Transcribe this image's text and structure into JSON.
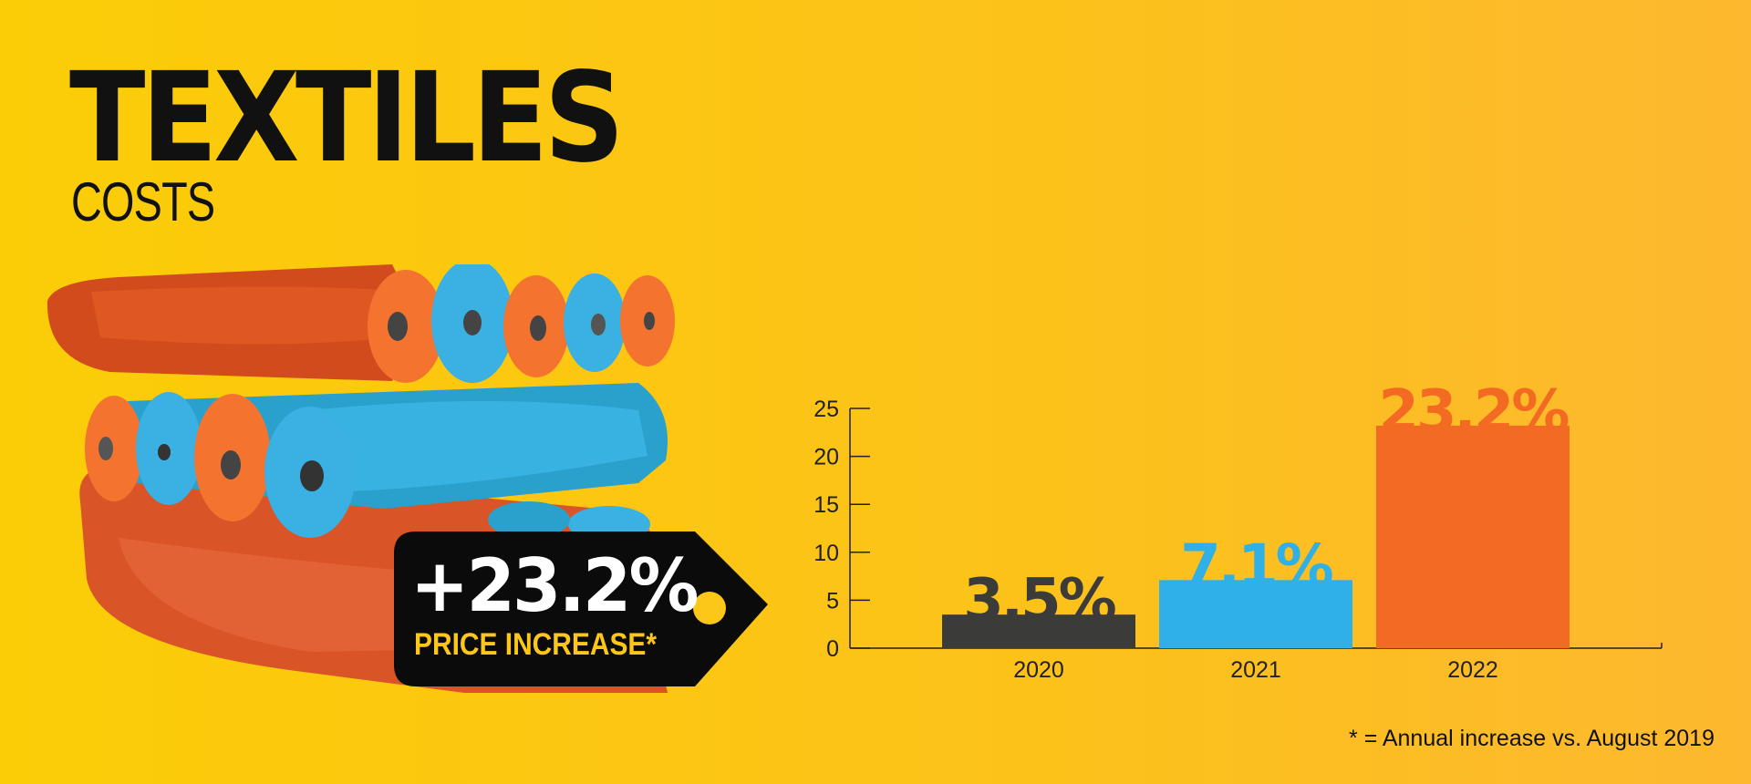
{
  "header": {
    "title": "TEXTILES",
    "subtitle": "COSTS"
  },
  "price_tag": {
    "value": "+23.2%",
    "label": "PRICE INCREASE*",
    "background_color": "#0b0b0b",
    "label_color": "#fcc719"
  },
  "footnote": "* = Annual increase vs. August 2019",
  "illustration": {
    "icon": "fabric-rolls-icon",
    "colors": [
      "#e25a23",
      "#f4742f",
      "#3ab0e3",
      "#2aa1cc"
    ]
  },
  "chart_data": {
    "type": "bar",
    "categories": [
      "2020",
      "2021",
      "2022"
    ],
    "values": [
      3.5,
      7.1,
      23.2
    ],
    "data_labels": [
      "3.5%",
      "7.1%",
      "23.2%"
    ],
    "colors": [
      "#3b3b39",
      "#2fb0e6",
      "#f36a23"
    ],
    "yticks": [
      0,
      5,
      10,
      15,
      20,
      25
    ],
    "ylim": [
      0,
      25
    ],
    "title": "",
    "xlabel": "",
    "ylabel": "",
    "grid": false,
    "legend": "none"
  }
}
